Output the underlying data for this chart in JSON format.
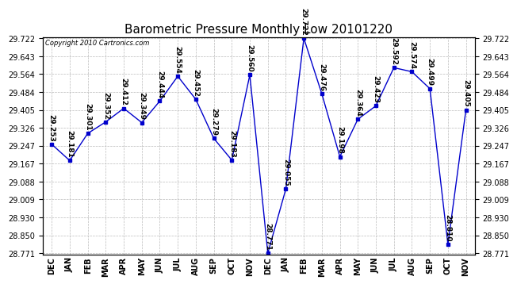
{
  "title": "Barometric Pressure Monthly Low 20101220",
  "copyright": "Copyright 2010 Cartronics.com",
  "months": [
    "DEC",
    "JAN",
    "FEB",
    "MAR",
    "APR",
    "MAY",
    "JUN",
    "JUL",
    "AUG",
    "SEP",
    "OCT",
    "NOV",
    "DEC",
    "JAN",
    "FEB",
    "MAR",
    "APR",
    "MAY",
    "JUN",
    "JUL",
    "AUG",
    "SEP",
    "OCT",
    "NOV"
  ],
  "values": [
    29.253,
    29.181,
    29.301,
    29.352,
    29.412,
    29.349,
    29.444,
    29.554,
    29.452,
    29.279,
    29.183,
    29.56,
    28.771,
    29.055,
    29.722,
    29.476,
    29.198,
    29.364,
    29.423,
    29.592,
    29.574,
    29.499,
    28.81,
    29.405
  ],
  "line_color": "#0000cc",
  "marker_color": "#0000cc",
  "bg_color": "#ffffff",
  "grid_color": "#bbbbbb",
  "title_fontsize": 11,
  "tick_fontsize": 7,
  "annotation_fontsize": 6.5,
  "ylim_min": 28.771,
  "ylim_max": 29.722,
  "yticks": [
    28.771,
    28.85,
    28.93,
    29.009,
    29.088,
    29.167,
    29.247,
    29.326,
    29.405,
    29.484,
    29.564,
    29.643,
    29.722
  ]
}
